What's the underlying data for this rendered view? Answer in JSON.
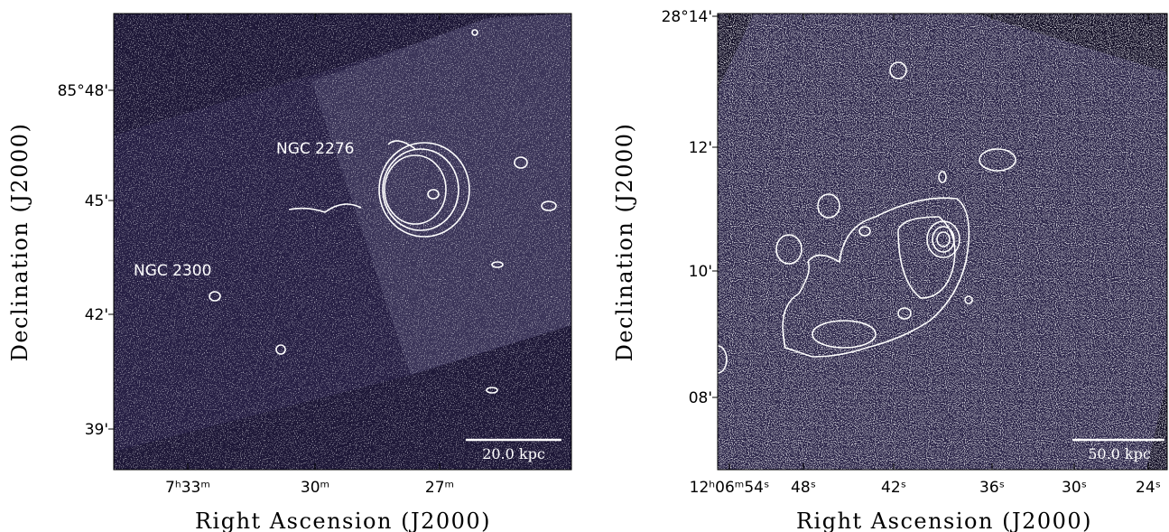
{
  "panels": [
    {
      "annotations": [
        "NGC 2276",
        "NGC 2300"
      ],
      "scale_bar": "20.0 kpc",
      "x_ticks": [
        "7ʰ33ᵐ",
        "30ᵐ",
        "27ᵐ"
      ],
      "y_ticks": [
        "85°48'",
        "45'",
        "42'",
        "39'"
      ],
      "x_label": "Right Ascension (J2000)",
      "y_label": "Declination (J2000)"
    },
    {
      "scale_bar": "50.0 kpc",
      "x_ticks": [
        "12ʰ06ᵐ54ˢ",
        "48ˢ",
        "42ˢ",
        "36ˢ",
        "30ˢ",
        "24ˢ"
      ],
      "y_ticks": [
        "28°14'",
        "12'",
        "10'",
        "08'"
      ],
      "x_label": "Right Ascension (J2000)",
      "y_label": "Declination (J2000)"
    }
  ]
}
